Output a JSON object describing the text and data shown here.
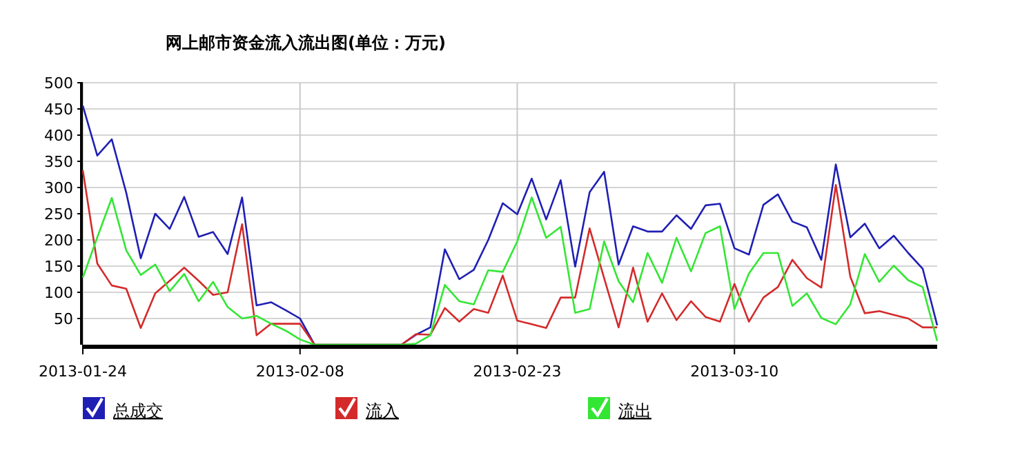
{
  "chart_data": {
    "type": "line",
    "title": "网上邮市资金流入流出图(单位：万元)",
    "x": [
      "2013-01-24",
      "2013-01-25",
      "2013-01-26",
      "2013-01-27",
      "2013-01-28",
      "2013-01-29",
      "2013-01-30",
      "2013-01-31",
      "2013-02-01",
      "2013-02-02",
      "2013-02-03",
      "2013-02-04",
      "2013-02-05",
      "2013-02-06",
      "2013-02-07",
      "2013-02-08",
      "2013-02-09",
      "2013-02-10",
      "2013-02-11",
      "2013-02-12",
      "2013-02-13",
      "2013-02-14",
      "2013-02-15",
      "2013-02-16",
      "2013-02-17",
      "2013-02-18",
      "2013-02-19",
      "2013-02-20",
      "2013-02-21",
      "2013-02-22",
      "2013-02-23",
      "2013-02-24",
      "2013-02-25",
      "2013-02-26",
      "2013-02-27",
      "2013-02-28",
      "2013-03-01",
      "2013-03-02",
      "2013-03-03",
      "2013-03-04",
      "2013-03-05",
      "2013-03-06",
      "2013-03-07",
      "2013-03-08",
      "2013-03-09",
      "2013-03-10",
      "2013-03-11",
      "2013-03-12",
      "2013-03-13",
      "2013-03-14",
      "2013-03-15",
      "2013-03-16",
      "2013-03-17",
      "2013-03-18",
      "2013-03-19",
      "2013-03-20",
      "2013-03-21",
      "2013-03-22",
      "2013-03-23",
      "2013-03-24"
    ],
    "series": [
      {
        "name": "总成交",
        "color": "#1f1fb4",
        "values": [
          456,
          361,
          392,
          290,
          165,
          250,
          221,
          282,
          206,
          215,
          173,
          281,
          75,
          81,
          66,
          50,
          0,
          0,
          0,
          0,
          0,
          0,
          0,
          19,
          33,
          182,
          125,
          143,
          200,
          270,
          249,
          317,
          239,
          314,
          149,
          291,
          330,
          153,
          226,
          216,
          216,
          247,
          221,
          266,
          269,
          184,
          172,
          267,
          287,
          235,
          224,
          162,
          344,
          205,
          231,
          184,
          208,
          175,
          145,
          37
        ]
      },
      {
        "name": "流入",
        "color": "#d42a2a",
        "values": [
          333,
          155,
          113,
          107,
          32,
          98,
          122,
          147,
          122,
          95,
          100,
          230,
          18,
          40,
          40,
          40,
          0,
          0,
          0,
          0,
          0,
          0,
          0,
          20,
          19,
          70,
          44,
          68,
          61,
          132,
          46,
          39,
          32,
          90,
          90,
          222,
          127,
          33,
          147,
          44,
          98,
          47,
          83,
          53,
          44,
          116,
          44,
          90,
          110,
          162,
          127,
          109,
          305,
          130,
          60,
          64,
          57,
          50,
          33,
          33
        ]
      },
      {
        "name": "流出",
        "color": "#33e633",
        "values": [
          128,
          205,
          280,
          180,
          133,
          153,
          102,
          135,
          83,
          120,
          72,
          50,
          55,
          40,
          27,
          10,
          0,
          0,
          0,
          0,
          0,
          0,
          0,
          2,
          18,
          114,
          83,
          77,
          142,
          139,
          197,
          281,
          204,
          225,
          61,
          68,
          197,
          121,
          81,
          175,
          118,
          204,
          140,
          213,
          226,
          68,
          136,
          175,
          175,
          74,
          98,
          51,
          39,
          77,
          173,
          120,
          151,
          123,
          110,
          7
        ]
      }
    ],
    "xlim": [
      "2013-01-24",
      "2013-03-24"
    ],
    "ylim": [
      0,
      500
    ],
    "xticks": [
      "2013-01-24",
      "2013-02-08",
      "2013-02-23",
      "2013-03-10"
    ],
    "yticks": [
      50,
      100,
      150,
      200,
      250,
      300,
      350,
      400,
      450,
      500
    ],
    "grid": true,
    "legend": "bottom"
  }
}
